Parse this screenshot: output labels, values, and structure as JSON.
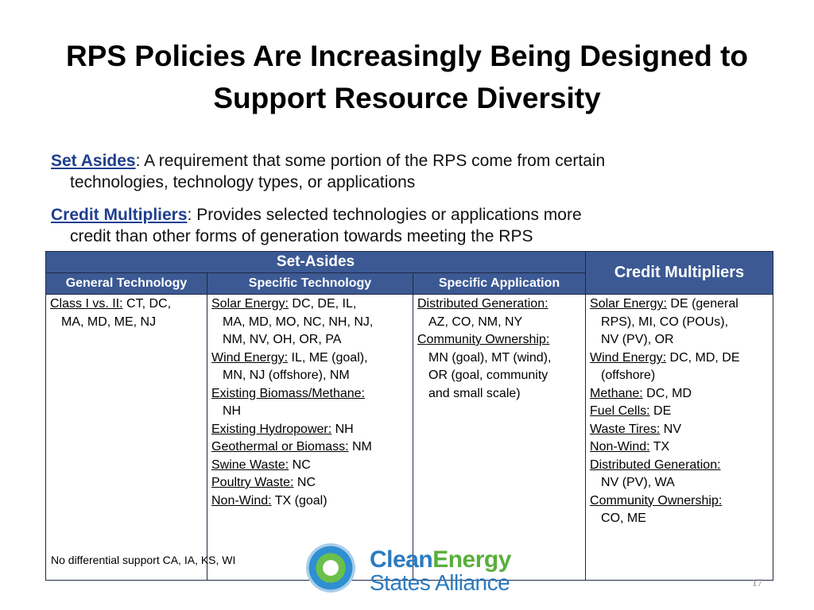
{
  "title_line1": "RPS Policies Are Increasingly Being Designed to",
  "title_line2": "Support Resource Diversity",
  "definitions": [
    {
      "term": "Set Asides",
      "text1": ": A requirement that some portion of the RPS come from certain",
      "text2": "technologies, technology types, or applications"
    },
    {
      "term": "Credit Multipliers",
      "text1": ": Provides selected technologies or applications more",
      "text2": "credit than other forms of generation towards meeting the RPS"
    }
  ],
  "table": {
    "header_set_asides": "Set-Asides",
    "header_credit_multipliers": "Credit Multipliers",
    "sub_general": "General Technology",
    "sub_specific_tech": "Specific Technology",
    "sub_specific_app": "Specific Application",
    "header_color": "#3c5994",
    "general": [
      {
        "label": "Class I vs. II:",
        "l1": " CT, DC,",
        "l2": "MA, MD, ME, NJ"
      }
    ],
    "specific_tech": [
      {
        "label": "Solar Energy:",
        "l1": " DC, DE, IL,",
        "l2": "MA, MD, MO, NC, NH, NJ,",
        "l3": "NM, NV, OH, OR, PA"
      },
      {
        "label": "Wind Energy:",
        "l1": " IL, ME (goal),",
        "l2": "MN, NJ (offshore), NM"
      },
      {
        "label": "Existing Biomass/Methane:",
        "l1": "",
        "l2": "NH"
      },
      {
        "label": "Existing Hydropower:",
        "l1": " NH"
      },
      {
        "label": "Geothermal or Biomass:",
        "l1": " NM"
      },
      {
        "label": "Swine Waste:",
        "l1": " NC"
      },
      {
        "label": "Poultry Waste:",
        "l1": " NC"
      },
      {
        "label": "Non-Wind:",
        "l1": " TX (goal)"
      }
    ],
    "specific_app": [
      {
        "label": "Distributed Generation:",
        "l1": "",
        "l2": "AZ, CO, NM, NY"
      },
      {
        "label": "Community Ownership:",
        "l1": "",
        "l2": "MN (goal), MT (wind),",
        "l3": "OR (goal, community",
        "l4": "and small scale)"
      }
    ],
    "credit_multipliers": [
      {
        "label": "Solar Energy:",
        "l1": " DE (general",
        "l2": "RPS), MI, CO (POUs),",
        "l3": "NV (PV), OR"
      },
      {
        "label": "Wind Energy:",
        "l1": " DC, MD, DE",
        "l2": "(offshore)"
      },
      {
        "label": "Methane:",
        "l1": " DC, MD"
      },
      {
        "label": "Fuel Cells:",
        "l1": " DE"
      },
      {
        "label": "Waste Tires:",
        "l1": " NV"
      },
      {
        "label": "Non-Wind:",
        "l1": " TX"
      },
      {
        "label": "Distributed Generation:",
        "l1": "",
        "l2": "NV (PV), WA"
      },
      {
        "label": "Community Ownership:",
        "l1": "",
        "l2": "CO, ME"
      }
    ]
  },
  "note": "No differential support CA, IA, KS, WI",
  "logo": {
    "clean": "Clean",
    "energy": "Energy",
    "line2": "States Alliance"
  },
  "page_number": "17"
}
